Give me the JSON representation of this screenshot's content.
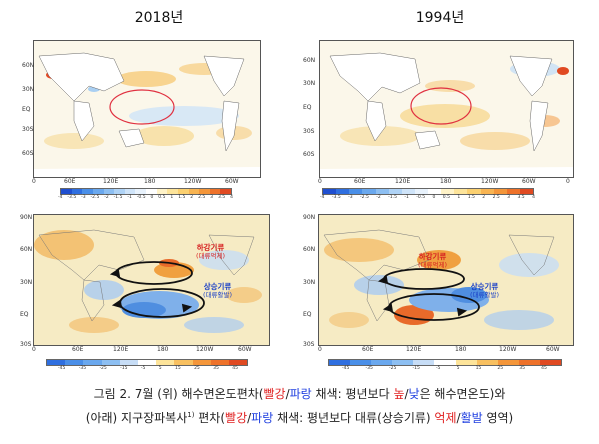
{
  "titles": {
    "left": "2018년",
    "right": "1994년"
  },
  "sst_panels": {
    "left": {
      "lat_labels": [
        "60N",
        "30N",
        "EQ",
        "30S",
        "60S"
      ],
      "lon_labels": [
        "0",
        "60E",
        "120E",
        "180",
        "120W",
        "60W"
      ]
    },
    "right": {
      "lat_labels": [
        "60N",
        "30N",
        "EQ",
        "30S",
        "60S"
      ],
      "lon_labels": [
        "0",
        "60E",
        "120E",
        "180",
        "120W",
        "60W",
        "0"
      ]
    },
    "colorbar_labels": [
      "-4",
      "-3.5",
      "-3",
      "-2.5",
      "-2",
      "-1.5",
      "-1",
      "-0.5",
      "0",
      "0.5",
      "1",
      "1.5",
      "2",
      "2.5",
      "3",
      "3.5",
      "4"
    ]
  },
  "olr_panels": {
    "left": {
      "lat_labels": [
        "90N",
        "60N",
        "30N",
        "EQ",
        "30S"
      ],
      "lon_labels": [
        "0",
        "60E",
        "120E",
        "180",
        "120W",
        "60W"
      ],
      "descend": {
        "title": "하강기류",
        "sub": "(대류억제)"
      },
      "ascend": {
        "title": "상승기류",
        "sub": "(대류활발)"
      }
    },
    "right": {
      "lat_labels": [
        "90N",
        "60N",
        "30N",
        "EQ",
        "30S"
      ],
      "lon_labels": [
        "0",
        "60E",
        "120E",
        "180",
        "120W",
        "60W"
      ],
      "descend": {
        "title": "하강기류",
        "sub": "(대류억제)"
      },
      "ascend": {
        "title": "상승기류",
        "sub": "(대류활발)"
      }
    },
    "colorbar_labels": [
      "-45",
      "-35",
      "-25",
      "-15",
      "-5",
      "5",
      "15",
      "25",
      "35",
      "45"
    ]
  },
  "caption": {
    "line1_a": "그림 2. 7월 (위) 해수면온도편차(",
    "line1_red": "빨강",
    "line1_slash1": "/",
    "line1_blue": "파랑",
    "line1_b": " 채색: 평년보다 ",
    "line1_red2": "높",
    "line1_slash2": "/",
    "line1_blue2": "낮",
    "line1_c": "은 해수면온도)와",
    "line2_a": "(아래) 지구장파복사",
    "line2_sup": "1)",
    "line2_b": " 편차(",
    "line2_red": "빨강",
    "line2_slash1": "/",
    "line2_blue": "파랑",
    "line2_c": " 채색: 평년보다 대류(상승기류) ",
    "line2_red2": "억제",
    "line2_slash2": "/",
    "line2_blue2": "활발",
    "line2_d": " 영역)"
  },
  "colors": {
    "warm": "#f4a03a",
    "cool": "#4a8fe0",
    "neutral": "#ffffff",
    "ellipse": "#e03040",
    "arrow": "#111111"
  }
}
